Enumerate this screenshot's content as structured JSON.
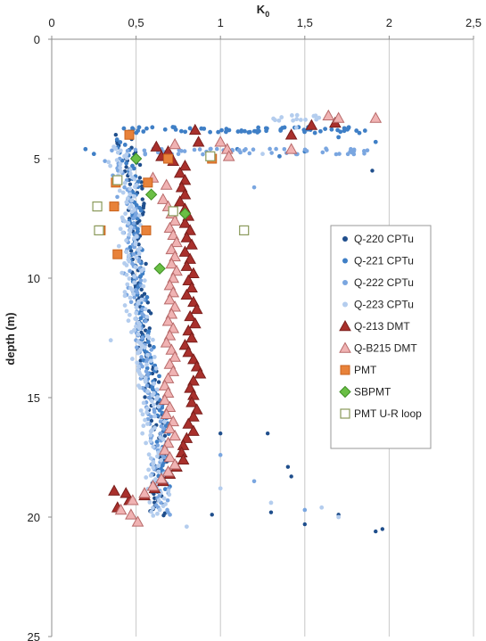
{
  "chart_data": {
    "type": "scatter",
    "xlabel_main": "K",
    "xlabel_sub": "0",
    "ylabel": "depth (m)",
    "xlim": [
      0,
      2.5
    ],
    "ylim": [
      0,
      25
    ],
    "y_reversed": true,
    "x_axis_position": "top",
    "x_ticks": [
      "0",
      "0,5",
      "1",
      "1,5",
      "2",
      "2,5"
    ],
    "y_ticks": [
      "0",
      "5",
      "10",
      "15",
      "20",
      "25"
    ],
    "grid": "vertical",
    "legend_position": "right-middle",
    "legend": [
      {
        "label": "Q-220 CPTu",
        "series": "q220"
      },
      {
        "label": "Q-221 CPTu",
        "series": "q221"
      },
      {
        "label": "Q-222 CPTu",
        "series": "q222"
      },
      {
        "label": "Q-223 CPTu",
        "series": "q223"
      },
      {
        "label": "Q-213 DMT",
        "series": "q213"
      },
      {
        "label": "Q-B215 DMT",
        "series": "qb215"
      },
      {
        "label": "PMT",
        "series": "pmt"
      },
      {
        "label": "SBPMT",
        "series": "sbpmt"
      },
      {
        "label": "PMT U-R loop",
        "series": "pmtur"
      }
    ],
    "series": [
      {
        "key": "q220",
        "name": "Q-220 CPTu",
        "marker": "dot",
        "color": "#1f4e8c",
        "size": 2.2,
        "profile": {
          "depth": [
            4.0,
            5.0,
            6.0,
            7.0,
            8.0,
            9.0,
            10.0,
            11.0,
            12.0,
            13.0,
            14.0,
            15.0,
            16.0,
            17.0,
            18.0,
            19.0,
            20.0
          ],
          "k0": [
            0.42,
            0.47,
            0.49,
            0.5,
            0.5,
            0.51,
            0.52,
            0.53,
            0.55,
            0.56,
            0.58,
            0.6,
            0.62,
            0.64,
            0.65,
            0.63,
            0.62
          ],
          "spread": 0.05,
          "step": 0.09
        },
        "extra": [
          [
            1.9,
            5.5
          ],
          [
            1.0,
            16.5
          ],
          [
            1.28,
            16.5
          ],
          [
            1.4,
            17.9
          ],
          [
            1.42,
            18.3
          ],
          [
            1.3,
            19.8
          ],
          [
            1.7,
            19.9
          ],
          [
            1.92,
            20.6
          ],
          [
            1.96,
            20.5
          ],
          [
            1.5,
            20.3
          ],
          [
            0.95,
            19.9
          ]
        ]
      },
      {
        "key": "q221",
        "name": "Q-221 CPTu",
        "marker": "dot",
        "color": "#3f7fc6",
        "size": 2.4,
        "band": {
          "depth": 3.8,
          "xmin": 0.42,
          "xmax": 1.92,
          "n": 70
        },
        "profile": {
          "depth": [
            4.2,
            5.0,
            6.0,
            7.0,
            8.0,
            9.0,
            10.0,
            11.0,
            12.0,
            13.0,
            14.0,
            15.0,
            16.0,
            17.0,
            18.0,
            19.0
          ],
          "k0": [
            0.4,
            0.45,
            0.48,
            0.49,
            0.5,
            0.5,
            0.51,
            0.53,
            0.55,
            0.57,
            0.6,
            0.63,
            0.65,
            0.66,
            0.67,
            0.66
          ],
          "spread": 0.04,
          "step": 0.11
        },
        "extra": [
          [
            1.7,
            4.1
          ],
          [
            1.92,
            4.3
          ],
          [
            1.5,
            4.7
          ],
          [
            1.35,
            4.9
          ],
          [
            1.1,
            4.6
          ],
          [
            0.2,
            4.6
          ],
          [
            0.25,
            4.8
          ]
        ]
      },
      {
        "key": "q222",
        "name": "Q-222 CPTu",
        "marker": "dot",
        "color": "#7aa6e0",
        "size": 2.3,
        "band": {
          "depth": 4.7,
          "xmin": 0.28,
          "xmax": 1.92,
          "n": 60
        },
        "profile": {
          "depth": [
            5.0,
            6.0,
            7.0,
            8.0,
            9.0,
            10.0,
            11.0,
            12.0,
            13.0,
            14.0,
            15.0,
            16.0,
            17.0,
            18.0,
            19.0,
            20.0
          ],
          "k0": [
            0.36,
            0.4,
            0.45,
            0.47,
            0.47,
            0.48,
            0.5,
            0.52,
            0.55,
            0.57,
            0.59,
            0.61,
            0.63,
            0.64,
            0.66,
            0.67
          ],
          "spread": 0.05,
          "step": 0.1
        },
        "extra": [
          [
            1.2,
            6.2
          ],
          [
            1.0,
            17.4
          ],
          [
            1.2,
            18.5
          ],
          [
            1.5,
            19.7
          ]
        ]
      },
      {
        "key": "q223",
        "name": "Q-223 CPTu",
        "marker": "dot",
        "color": "#b4cdee",
        "size": 2.4,
        "band": {
          "depth": 3.3,
          "xmin": 1.3,
          "xmax": 1.6,
          "n": 14
        },
        "profile": {
          "depth": [
            4.5,
            5.0,
            6.0,
            7.0,
            8.0,
            9.0,
            10.0,
            11.0,
            12.0,
            13.0,
            14.0,
            15.0,
            16.0,
            17.0,
            18.0,
            19.0,
            20.0
          ],
          "k0": [
            0.42,
            0.4,
            0.44,
            0.46,
            0.46,
            0.47,
            0.48,
            0.5,
            0.52,
            0.54,
            0.56,
            0.58,
            0.6,
            0.61,
            0.62,
            0.63,
            0.64
          ],
          "spread": 0.07,
          "step": 0.08
        },
        "extra": [
          [
            0.35,
            12.6
          ],
          [
            1.0,
            18.8
          ],
          [
            1.3,
            19.4
          ],
          [
            1.6,
            19.6
          ],
          [
            1.7,
            20.0
          ],
          [
            0.8,
            20.4
          ],
          [
            1.25,
            4.8
          ],
          [
            1.45,
            3.7
          ]
        ]
      },
      {
        "key": "q213",
        "name": "Q-213 DMT",
        "marker": "triangle",
        "fill": "#a9302c",
        "stroke": "#7a1e1b",
        "points": [
          [
            1.54,
            3.6
          ],
          [
            1.68,
            3.5
          ],
          [
            1.42,
            4.0
          ],
          [
            0.85,
            3.8
          ],
          [
            0.87,
            4.3
          ],
          [
            0.62,
            4.5
          ],
          [
            0.69,
            4.7
          ],
          [
            0.65,
            4.9
          ],
          [
            0.72,
            5.1
          ],
          [
            0.79,
            5.3
          ],
          [
            0.76,
            5.6
          ],
          [
            0.79,
            5.9
          ],
          [
            0.77,
            6.2
          ],
          [
            0.79,
            6.5
          ],
          [
            0.76,
            6.8
          ],
          [
            0.79,
            7.1
          ],
          [
            0.81,
            7.4
          ],
          [
            0.79,
            7.7
          ],
          [
            0.82,
            8.0
          ],
          [
            0.8,
            8.3
          ],
          [
            0.83,
            8.6
          ],
          [
            0.79,
            8.9
          ],
          [
            0.82,
            9.2
          ],
          [
            0.8,
            9.5
          ],
          [
            0.84,
            9.8
          ],
          [
            0.81,
            10.1
          ],
          [
            0.83,
            10.4
          ],
          [
            0.8,
            10.7
          ],
          [
            0.84,
            11.0
          ],
          [
            0.86,
            11.3
          ],
          [
            0.82,
            11.6
          ],
          [
            0.85,
            11.9
          ],
          [
            0.81,
            12.2
          ],
          [
            0.83,
            12.5
          ],
          [
            0.79,
            12.8
          ],
          [
            0.81,
            13.1
          ],
          [
            0.84,
            13.4
          ],
          [
            0.86,
            13.7
          ],
          [
            0.88,
            14.0
          ],
          [
            0.84,
            14.3
          ],
          [
            0.82,
            14.6
          ],
          [
            0.84,
            14.9
          ],
          [
            0.83,
            15.2
          ],
          [
            0.86,
            15.5
          ],
          [
            0.84,
            15.8
          ],
          [
            0.81,
            16.1
          ],
          [
            0.84,
            16.4
          ],
          [
            0.8,
            16.7
          ],
          [
            0.78,
            17.0
          ],
          [
            0.77,
            17.3
          ],
          [
            0.78,
            17.6
          ],
          [
            0.74,
            17.9
          ],
          [
            0.7,
            18.2
          ],
          [
            0.66,
            18.5
          ],
          [
            0.61,
            18.8
          ],
          [
            0.55,
            19.1
          ],
          [
            0.46,
            19.3
          ],
          [
            0.39,
            19.6
          ],
          [
            0.37,
            18.9
          ],
          [
            0.44,
            19.0
          ]
        ]
      },
      {
        "key": "qb215",
        "name": "Q-B215 DMT",
        "marker": "triangle",
        "fill": "#f0b3b3",
        "stroke": "#b86a6a",
        "points": [
          [
            1.92,
            3.3
          ],
          [
            1.7,
            3.3
          ],
          [
            1.64,
            3.2
          ],
          [
            1.42,
            4.6
          ],
          [
            1.04,
            4.6
          ],
          [
            1.05,
            4.9
          ],
          [
            1.0,
            4.3
          ],
          [
            0.73,
            4.4
          ],
          [
            0.6,
            5.8
          ],
          [
            0.68,
            6.1
          ],
          [
            0.66,
            6.7
          ],
          [
            0.69,
            7.0
          ],
          [
            0.71,
            7.3
          ],
          [
            0.73,
            7.6
          ],
          [
            0.7,
            7.9
          ],
          [
            0.72,
            8.2
          ],
          [
            0.74,
            8.5
          ],
          [
            0.71,
            8.8
          ],
          [
            0.73,
            9.1
          ],
          [
            0.71,
            9.4
          ],
          [
            0.74,
            9.7
          ],
          [
            0.72,
            10.0
          ],
          [
            0.7,
            10.3
          ],
          [
            0.72,
            10.6
          ],
          [
            0.7,
            10.9
          ],
          [
            0.73,
            11.2
          ],
          [
            0.71,
            11.5
          ],
          [
            0.69,
            11.8
          ],
          [
            0.72,
            12.1
          ],
          [
            0.7,
            12.4
          ],
          [
            0.68,
            12.7
          ],
          [
            0.71,
            13.0
          ],
          [
            0.73,
            13.3
          ],
          [
            0.7,
            13.6
          ],
          [
            0.72,
            13.9
          ],
          [
            0.69,
            14.2
          ],
          [
            0.67,
            14.5
          ],
          [
            0.69,
            14.8
          ],
          [
            0.67,
            15.1
          ],
          [
            0.7,
            15.4
          ],
          [
            0.68,
            15.7
          ],
          [
            0.72,
            16.0
          ],
          [
            0.7,
            16.3
          ],
          [
            0.73,
            16.6
          ],
          [
            0.69,
            16.9
          ],
          [
            0.67,
            17.2
          ],
          [
            0.7,
            17.5
          ],
          [
            0.73,
            17.8
          ],
          [
            0.69,
            18.1
          ],
          [
            0.65,
            18.4
          ],
          [
            0.6,
            18.7
          ],
          [
            0.55,
            19.0
          ],
          [
            0.48,
            19.3
          ],
          [
            0.47,
            19.9
          ],
          [
            0.51,
            20.2
          ],
          [
            0.41,
            19.7
          ]
        ]
      },
      {
        "key": "pmt",
        "name": "PMT",
        "marker": "square-filled",
        "fill": "#e8823a",
        "stroke": "#c9621c",
        "points": [
          [
            0.46,
            4.0
          ],
          [
            0.69,
            5.0
          ],
          [
            0.95,
            5.0
          ],
          [
            0.38,
            6.0
          ],
          [
            0.57,
            6.0
          ],
          [
            0.37,
            7.0
          ],
          [
            0.29,
            8.0
          ],
          [
            0.56,
            8.0
          ],
          [
            0.39,
            9.0
          ]
        ]
      },
      {
        "key": "sbpmt",
        "name": "SBPMT",
        "marker": "diamond",
        "fill": "#6abf45",
        "stroke": "#3f8f25",
        "points": [
          [
            0.5,
            5.0
          ],
          [
            0.59,
            6.5
          ],
          [
            0.79,
            7.3
          ],
          [
            0.64,
            9.6
          ]
        ]
      },
      {
        "key": "pmtur",
        "name": "PMT U-R loop",
        "marker": "square-open",
        "fill": "#ffffff",
        "stroke": "#8a9a5b",
        "points": [
          [
            0.94,
            4.9
          ],
          [
            0.39,
            5.9
          ],
          [
            0.27,
            7.0
          ],
          [
            0.28,
            8.0
          ],
          [
            1.14,
            8.0
          ],
          [
            0.72,
            7.2
          ]
        ]
      }
    ]
  }
}
